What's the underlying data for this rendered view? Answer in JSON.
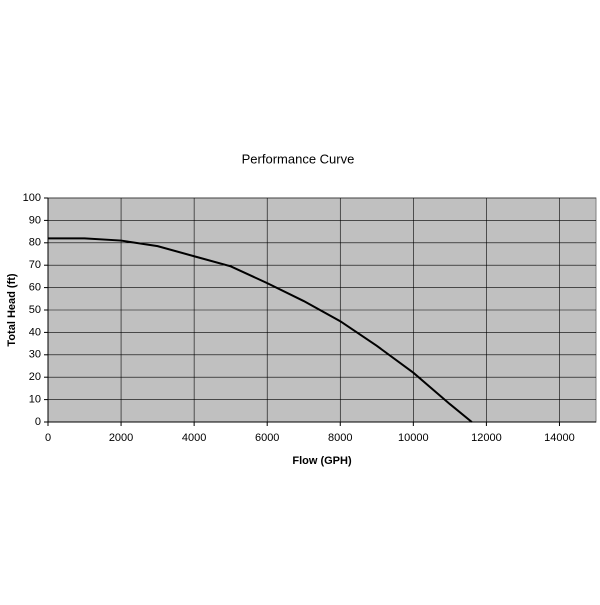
{
  "chart_data": {
    "type": "line",
    "title": "Performance Curve",
    "x_label": "Flow (GPH)",
    "y_label": "Total Head (ft)",
    "x": [
      0,
      1000,
      2000,
      3000,
      4000,
      5000,
      6000,
      7000,
      8000,
      9000,
      10000,
      11000,
      11600
    ],
    "values": [
      82,
      82,
      81,
      78.5,
      74,
      69.5,
      62,
      54,
      45,
      34,
      22,
      8,
      0
    ],
    "color": "#000000",
    "xlim": [
      0,
      15000
    ],
    "xticks": [
      0,
      2000,
      4000,
      6000,
      8000,
      10000,
      12000,
      14000
    ],
    "ylim": [
      0,
      100
    ],
    "yticks": [
      0,
      10,
      20,
      30,
      40,
      50,
      60,
      70,
      80,
      90,
      100
    ],
    "grid": true
  }
}
